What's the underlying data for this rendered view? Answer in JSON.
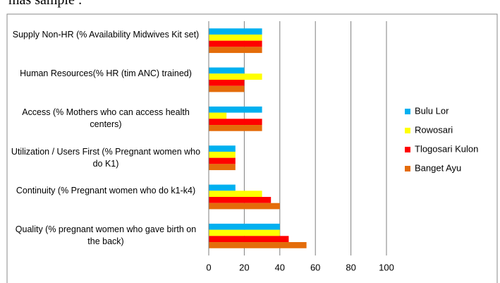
{
  "caption": "mas sample :",
  "chart_data": {
    "type": "hbar",
    "categories": [
      "Supply Non-HR (% Availability Midwives Kit set)",
      "Human Resources(% HR (tim  ANC) trained)",
      "Access (% Mothers who can access health centers)",
      "Utilization / Users First (% Pregnant women who do K1)",
      "Continuity (% Pregnant women who do k1-k4)",
      "Quality (% pregnant women who gave birth on the back)"
    ],
    "series": [
      {
        "name": "Bulu Lor",
        "color": "#00b0f0",
        "values": [
          30,
          20,
          30,
          15,
          15,
          40
        ]
      },
      {
        "name": "Rowosari",
        "color": "#ffff00",
        "values": [
          30,
          30,
          10,
          15,
          30,
          40
        ]
      },
      {
        "name": "Tlogosari Kulon",
        "color": "#ff0000",
        "values": [
          30,
          20,
          30,
          15,
          35,
          45
        ]
      },
      {
        "name": "Banget Ayu",
        "color": "#e46c0a",
        "values": [
          30,
          20,
          30,
          15,
          40,
          55
        ]
      }
    ],
    "xlim": [
      0,
      100
    ],
    "xticks": [
      0,
      20,
      40,
      60,
      80,
      100
    ],
    "grid": true,
    "legend": "right"
  }
}
